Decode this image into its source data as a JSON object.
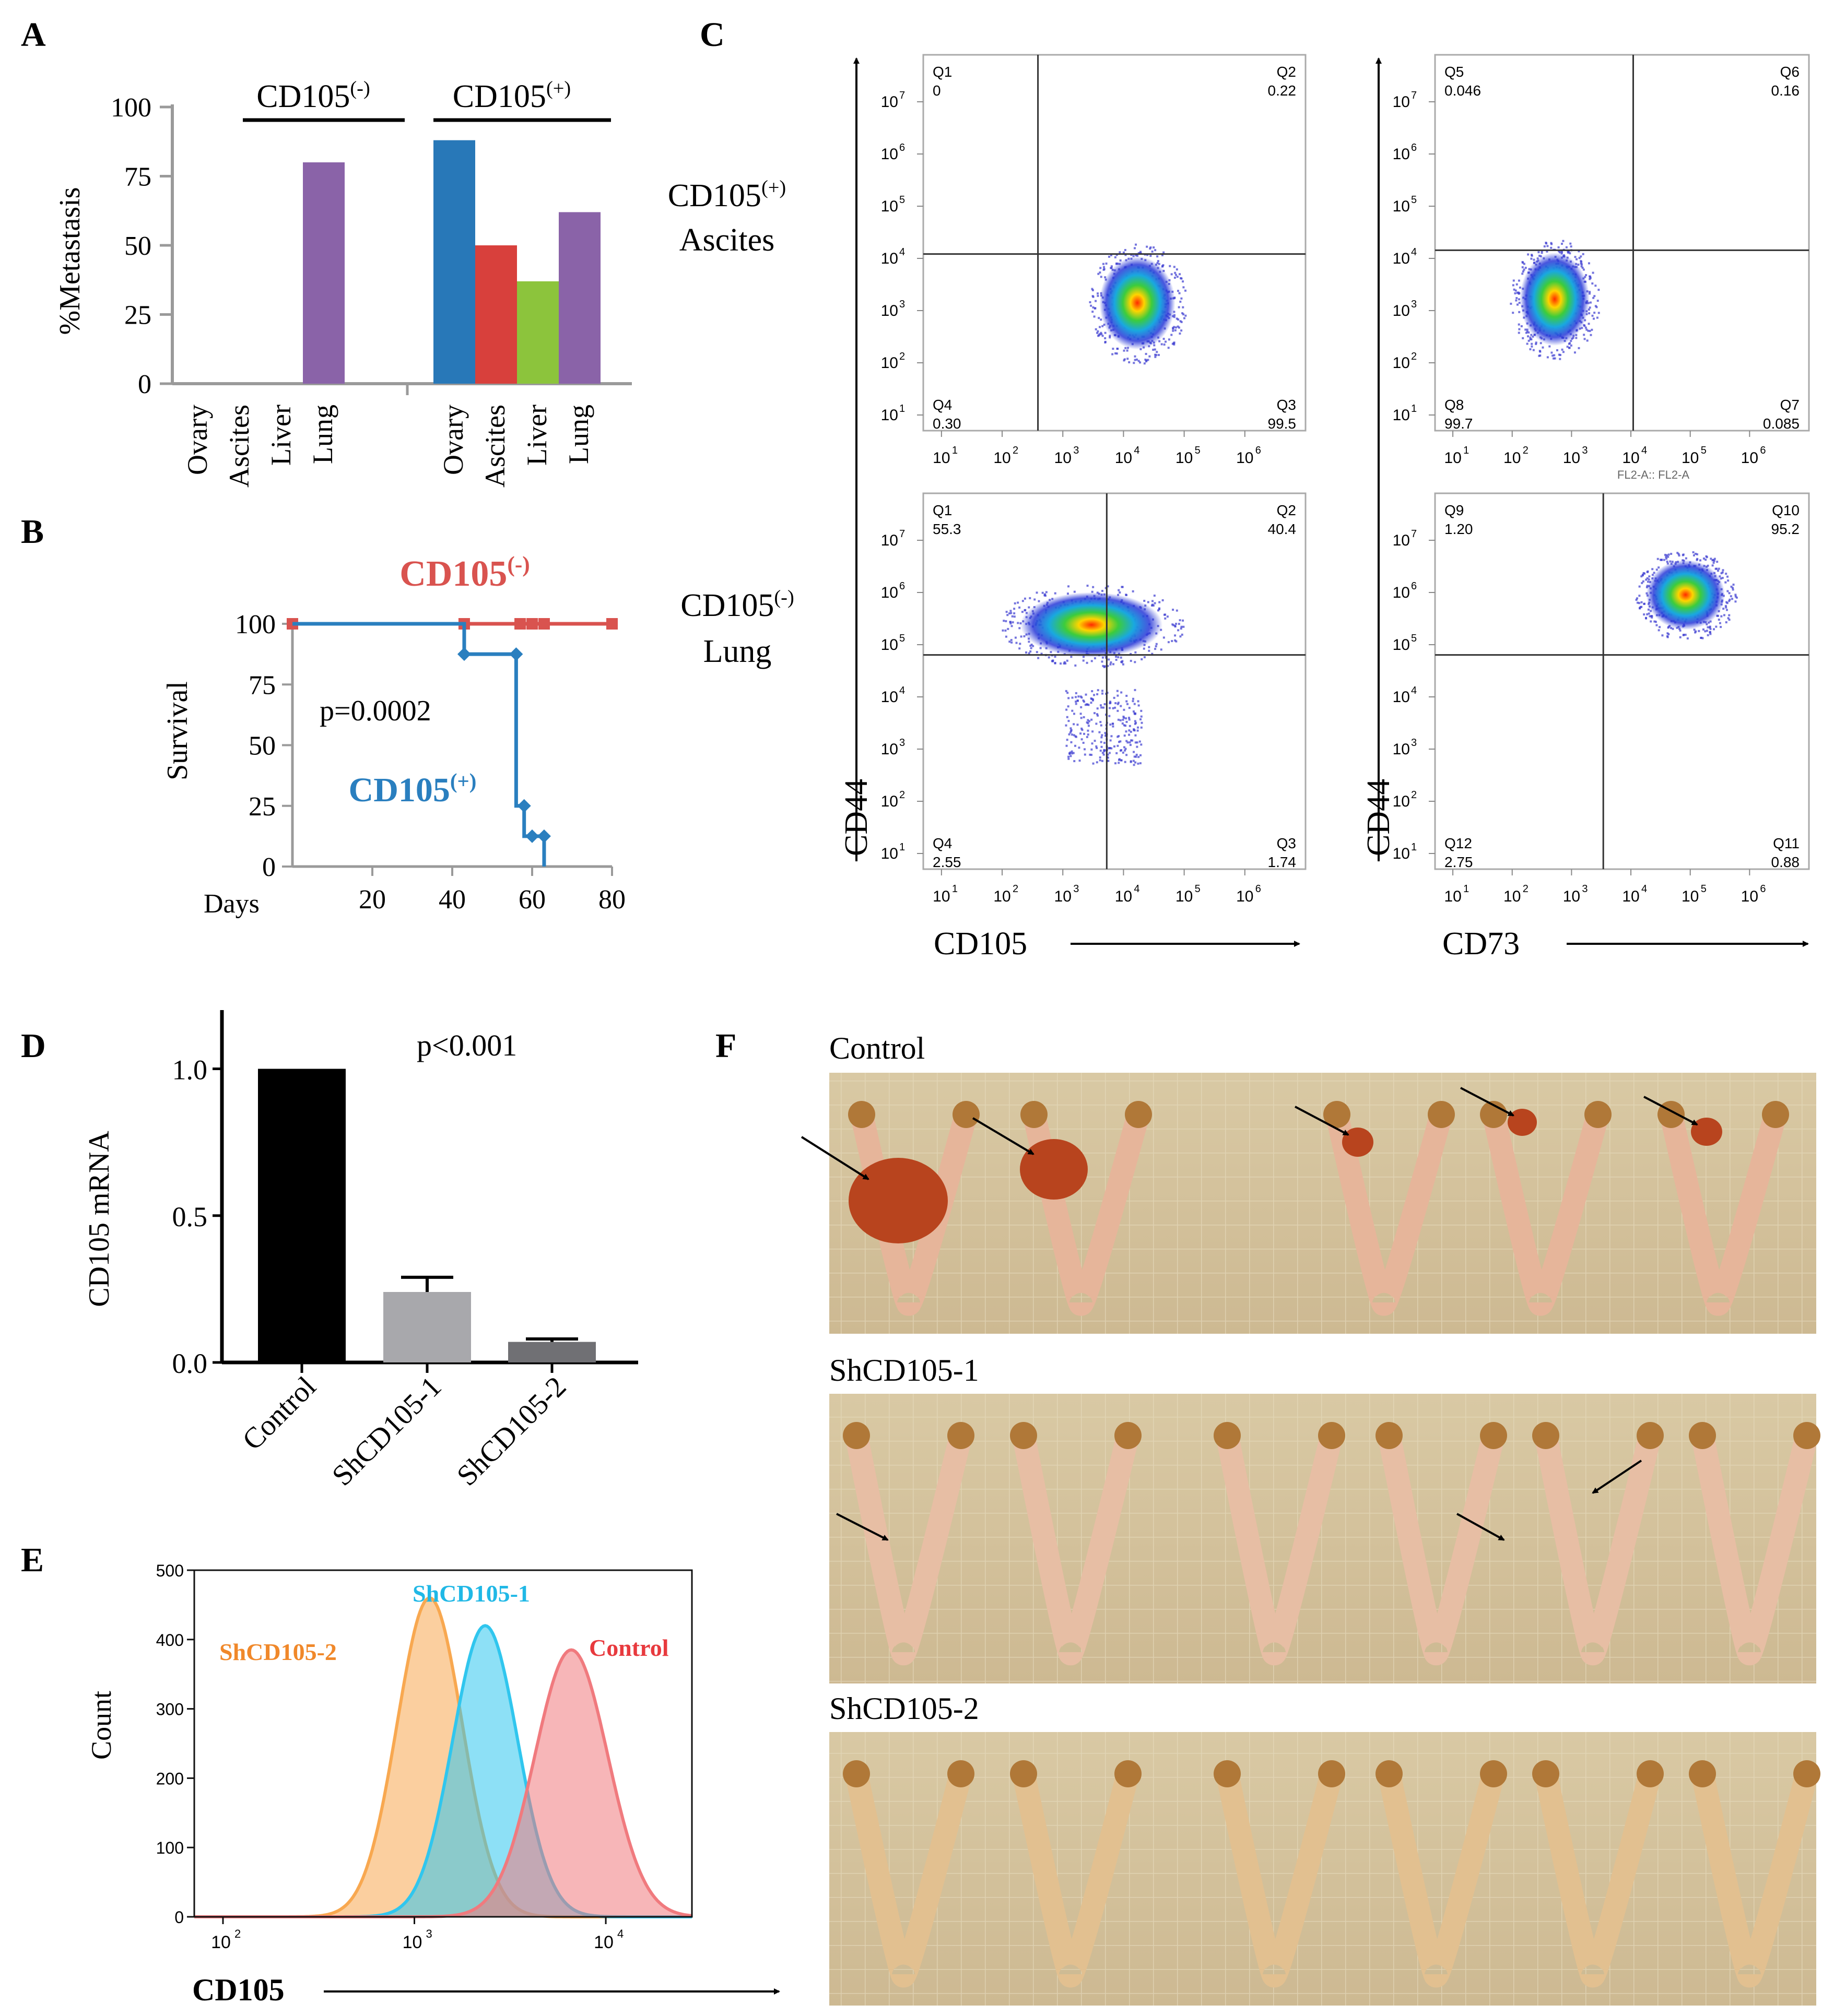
{
  "panel_labels": {
    "a": "A",
    "b": "B",
    "c": "C",
    "d": "D",
    "e": "E",
    "f": "F"
  },
  "colors": {
    "ovary": "#2878b8",
    "ascites": "#d8403c",
    "liver": "#8cc43c",
    "lung": "#8a63a8",
    "km_neg": "#d9534f",
    "km_pos": "#2a7fbf",
    "hist_control": "#f07a7e",
    "hist_sh1": "#30c6ee",
    "hist_sh2": "#f8a850",
    "bar_control": "#000000",
    "bar_sh1": "#a8a8ac",
    "bar_sh2": "#707074"
  },
  "chart_data": [
    {
      "id": "A",
      "type": "bar",
      "ylabel": "%Metastasis",
      "ylim": [
        0,
        100
      ],
      "yticks": [
        "0",
        "25",
        "50",
        "75",
        "100"
      ],
      "groups": [
        {
          "label": "CD105",
          "sup": "(-)",
          "categories": [
            "Ovary",
            "Ascites",
            "Liver",
            "Lung"
          ],
          "values": [
            0,
            0,
            0,
            80
          ]
        },
        {
          "label": "CD105",
          "sup": "(+)",
          "categories": [
            "Ovary",
            "Ascites",
            "Liver",
            "Lung"
          ],
          "values": [
            88,
            50,
            37,
            62
          ]
        }
      ]
    },
    {
      "id": "B",
      "type": "line",
      "ylabel": "Survival",
      "xlabel": "Days",
      "xticks": [
        "20",
        "40",
        "60",
        "80"
      ],
      "yticks": [
        "0",
        "25",
        "50",
        "75",
        "100"
      ],
      "xlim": [
        0,
        80
      ],
      "ylim": [
        0,
        100
      ],
      "p_value": "p=0.0002",
      "series": [
        {
          "name": "CD105",
          "sup": "(-)",
          "x": [
            0,
            80
          ],
          "y": [
            100,
            100
          ],
          "censor_x": [
            0,
            43,
            57,
            60,
            63,
            80
          ]
        },
        {
          "name": "CD105",
          "sup": "(+)",
          "x": [
            0,
            43,
            43,
            56,
            56,
            58,
            58,
            60,
            60,
            63,
            63
          ],
          "y": [
            100,
            100,
            87.5,
            87.5,
            25,
            25,
            12.5,
            12.5,
            12.5,
            12.5,
            0
          ],
          "marker_x": [
            43,
            56,
            58,
            60,
            63
          ],
          "marker_y": [
            87.5,
            87.5,
            25,
            12.5,
            12.5
          ]
        }
      ]
    },
    {
      "id": "C",
      "type": "scatter",
      "row_labels": [
        {
          "line1": "CD105",
          "sup": "(+)",
          "line2": "Ascites"
        },
        {
          "line1": "CD105",
          "sup": "(-)",
          "line2": "Lung"
        }
      ],
      "ylabel": "CD44",
      "xlabels": [
        "CD105",
        "CD73"
      ],
      "tick_exponents": [
        "1",
        "2",
        "3",
        "4",
        "5",
        "6",
        "7"
      ],
      "plots": [
        {
          "quadrants": [
            {
              "name": "Q1",
              "value": "0"
            },
            {
              "name": "Q2",
              "value": "0.22"
            },
            {
              "name": "Q3",
              "value": "99.5"
            },
            {
              "name": "Q4",
              "value": "0.30"
            }
          ]
        },
        {
          "quadrants": [
            {
              "name": "Q5",
              "value": "0.046"
            },
            {
              "name": "Q6",
              "value": "0.16"
            },
            {
              "name": "Q7",
              "value": "0.085"
            },
            {
              "name": "Q8",
              "value": "99.7"
            }
          ],
          "axis_caption": "FL2-A:: FL2-A"
        },
        {
          "quadrants": [
            {
              "name": "Q1",
              "value": "55.3"
            },
            {
              "name": "Q2",
              "value": "40.4"
            },
            {
              "name": "Q3",
              "value": "1.74"
            },
            {
              "name": "Q4",
              "value": "2.55"
            }
          ]
        },
        {
          "quadrants": [
            {
              "name": "Q9",
              "value": "1.20"
            },
            {
              "name": "Q10",
              "value": "95.2"
            },
            {
              "name": "Q11",
              "value": "0.88"
            },
            {
              "name": "Q12",
              "value": "2.75"
            }
          ]
        }
      ]
    },
    {
      "id": "D",
      "type": "bar",
      "ylabel": "CD105 mRNA",
      "yticks": [
        "0.0",
        "0.5",
        "1.0"
      ],
      "ylim": [
        0,
        1.2
      ],
      "p_value": "p<0.001",
      "categories": [
        "Control",
        "ShCD105-1",
        "ShCD105-2"
      ],
      "values": [
        1.0,
        0.24,
        0.07
      ],
      "errors": [
        0,
        0.05,
        0.01
      ]
    },
    {
      "id": "E",
      "type": "area",
      "ylabel": "Count",
      "xlabel": "CD105",
      "yticks": [
        "0",
        "100",
        "200",
        "300",
        "400",
        "500"
      ],
      "ylim": [
        0,
        500
      ],
      "xticks": [
        "2",
        "3",
        "4"
      ],
      "xlim": [
        1.85,
        4.45
      ],
      "series": [
        {
          "name": "ShCD105-2",
          "peak_log": 3.08,
          "sigma": 0.17,
          "peak": 460
        },
        {
          "name": "ShCD105-1",
          "peak_log": 3.37,
          "sigma": 0.17,
          "peak": 420
        },
        {
          "name": "Control",
          "peak_log": 3.82,
          "sigma": 0.19,
          "peak": 385
        }
      ]
    }
  ],
  "panel_f": {
    "rows": [
      {
        "label": "Control",
        "arrow_count": 5
      },
      {
        "label": "ShCD105-1",
        "arrow_count": 3
      },
      {
        "label": "ShCD105-2",
        "arrow_count": 0
      }
    ]
  }
}
